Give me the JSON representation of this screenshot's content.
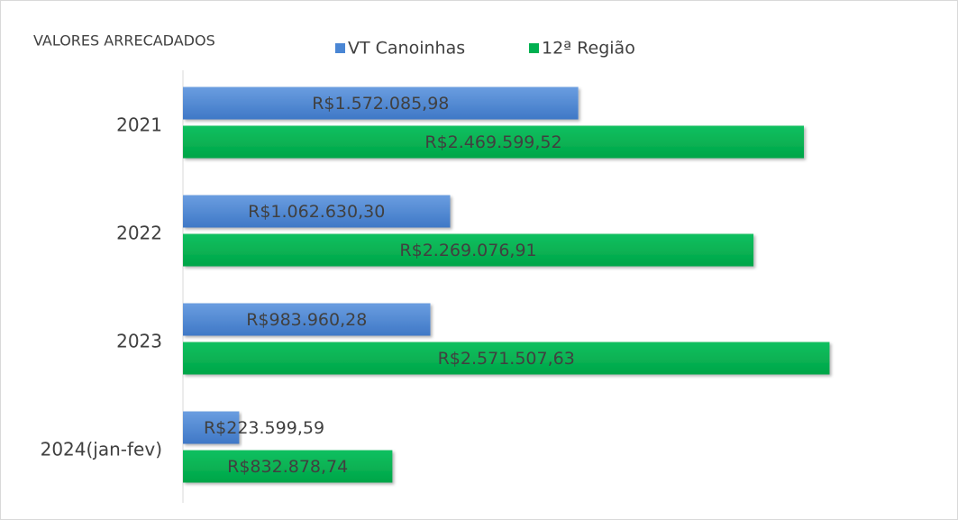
{
  "chart_data": {
    "type": "bar",
    "orientation": "horizontal",
    "title": "VALORES ARRECADADOS",
    "categories": [
      "2021",
      "2022",
      "2023",
      "2024(jan-fev)"
    ],
    "series": [
      {
        "name": "VT Canoinhas",
        "color": "#4a86d4",
        "values": [
          1572085.98,
          1062630.3,
          983960.28,
          223599.59
        ],
        "value_labels": [
          "R$1.572.085,98",
          "R$1.062.630,30",
          "R$983.960,28",
          "R$223.599,59"
        ]
      },
      {
        "name": "12ª Região",
        "color": "#00b050",
        "values": [
          2469599.52,
          2269076.91,
          2571507.63,
          832878.74
        ],
        "value_labels": [
          "R$2.469.599,52",
          "R$2.269.076,91",
          "R$2.571.507,63",
          "R$832.878,74"
        ]
      }
    ],
    "xlim": [
      0,
      3000000
    ],
    "legend": "top"
  }
}
